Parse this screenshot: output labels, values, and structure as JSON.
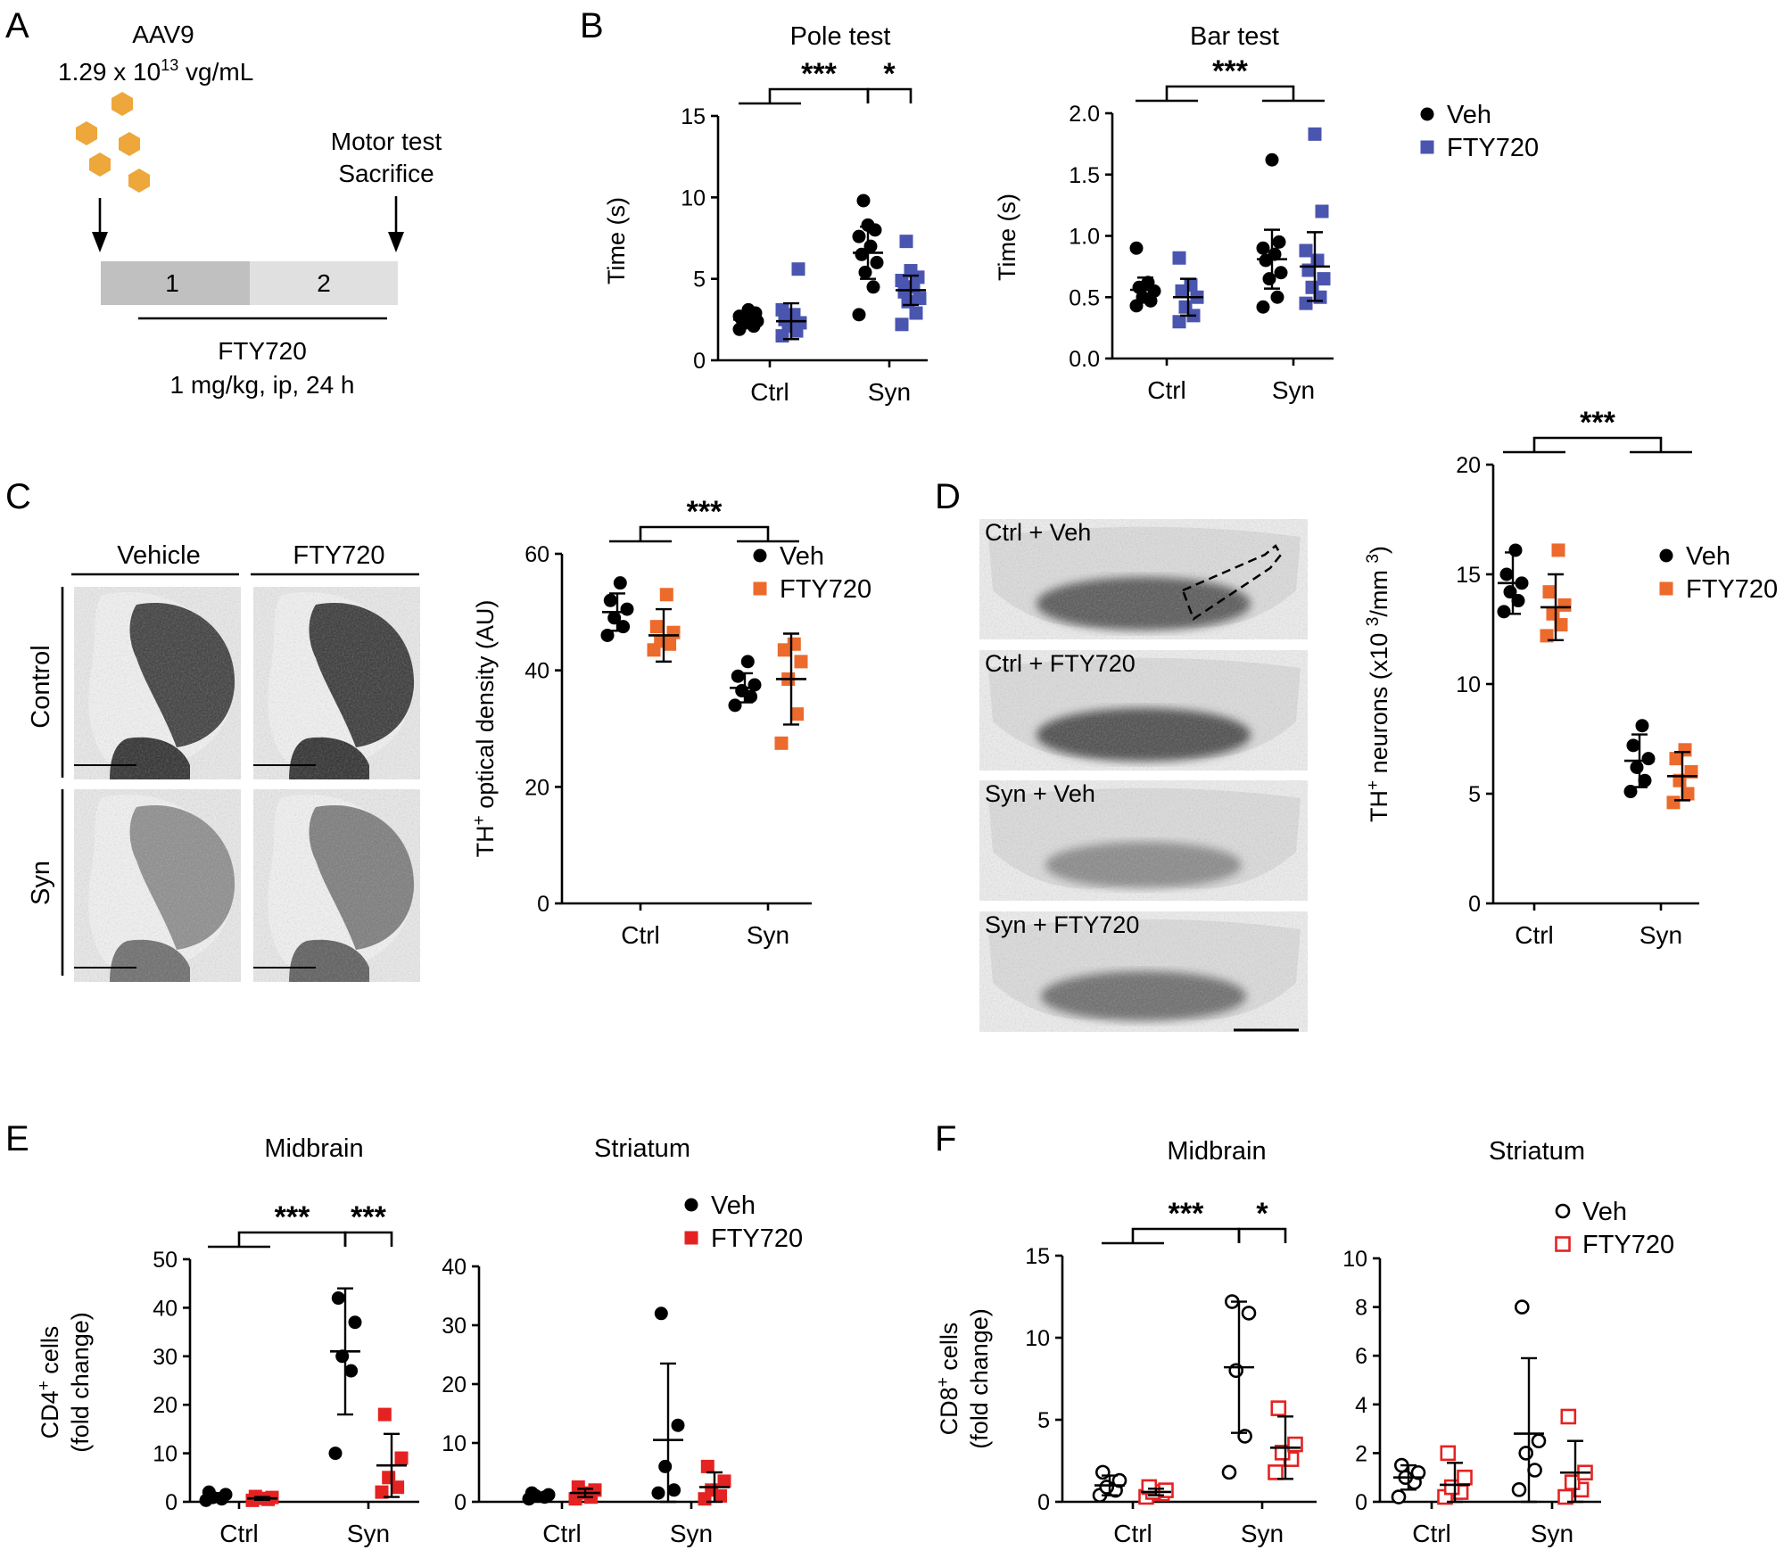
{
  "colors": {
    "veh": "#000000",
    "fty_blue": "#4a55b0",
    "fty_orange": "#ec6a2c",
    "fty_red": "#e52222",
    "aav_particle": "#eda73a",
    "bar1": "#c0c0c0",
    "bar2": "#e0e0e0"
  },
  "panelA": {
    "label": "A",
    "virus": "AAV9",
    "titer_prefix": "1.29 x 10",
    "titer_exp": "13",
    "titer_suffix": " vg/mL",
    "endpoint_line1": "Motor test",
    "endpoint_line2": "Sacrifice",
    "week1": "1",
    "week2": "2",
    "treatment": "FTY720",
    "dose": "1 mg/kg, ip, 24 h"
  },
  "panelB": {
    "label": "B"
  },
  "panelC": {
    "label": "C",
    "col1": "Vehicle",
    "col2": "FTY720",
    "row1": "Control",
    "row2": "Syn"
  },
  "panelD": {
    "label": "D",
    "images": [
      "Ctrl + Veh",
      "Ctrl + FTY720",
      "Syn + Veh",
      "Syn + FTY720"
    ]
  },
  "panelE": {
    "label": "E"
  },
  "panelF": {
    "label": "F"
  },
  "chart_data": [
    {
      "id": "B_pole",
      "panel": "B",
      "type": "scatter",
      "title": "Pole test",
      "ylabel": "Time (s)",
      "ylim": [
        0,
        15
      ],
      "yticks": [
        "0",
        "5",
        "10",
        "15"
      ],
      "categories": [
        "Ctrl",
        "Syn"
      ],
      "legend": {
        "show": false
      },
      "series": [
        {
          "name": "Veh",
          "color": "#000000",
          "marker": "circle",
          "filled": true,
          "groups": [
            {
              "mean": 2.5,
              "sd": 0.5,
              "points": [
                1.9,
                2.1,
                2.3,
                2.4,
                2.5,
                2.6,
                2.7,
                2.9,
                3.1
              ]
            },
            {
              "mean": 6.6,
              "sd": 1.6,
              "points": [
                2.8,
                4.5,
                5.4,
                6.0,
                6.5,
                7.0,
                7.6,
                8.0,
                8.3,
                9.8
              ]
            }
          ]
        },
        {
          "name": "FTY720",
          "color": "#4a55b0",
          "marker": "square",
          "filled": true,
          "groups": [
            {
              "mean": 2.4,
              "sd": 1.1,
              "points": [
                1.5,
                1.8,
                2.1,
                2.3,
                2.5,
                2.8,
                3.1,
                5.6
              ]
            },
            {
              "mean": 4.3,
              "sd": 0.9,
              "points": [
                2.2,
                2.9,
                3.6,
                3.8,
                4.2,
                4.5,
                4.9,
                5.1,
                5.5,
                7.3
              ]
            }
          ]
        }
      ],
      "brackets": [
        {
          "type": "group",
          "from": "Ctrl",
          "to": "Syn-Veh",
          "label": "***"
        },
        {
          "type": "pair",
          "from": "Syn-Veh",
          "to": "Syn-FTY720",
          "label": "*"
        }
      ]
    },
    {
      "id": "B_bar",
      "panel": "B",
      "type": "scatter",
      "title": "Bar test",
      "ylabel": "Time (s)",
      "ylim": [
        0,
        2.0
      ],
      "yticks": [
        "0.0",
        "0.5",
        "1.0",
        "1.5",
        "2.0"
      ],
      "categories": [
        "Ctrl",
        "Syn"
      ],
      "legend": {
        "show": true,
        "position": "right",
        "entries": [
          "Veh",
          "FTY720"
        ]
      },
      "series": [
        {
          "name": "Veh",
          "color": "#000000",
          "marker": "circle",
          "filled": true,
          "groups": [
            {
              "mean": 0.56,
              "sd": 0.1,
              "points": [
                0.43,
                0.47,
                0.5,
                0.55,
                0.58,
                0.62,
                0.9
              ]
            },
            {
              "mean": 0.81,
              "sd": 0.24,
              "points": [
                0.42,
                0.5,
                0.65,
                0.7,
                0.8,
                0.85,
                0.9,
                0.95,
                1.62
              ]
            }
          ]
        },
        {
          "name": "FTY720",
          "color": "#4a55b0",
          "marker": "square",
          "filled": true,
          "groups": [
            {
              "mean": 0.5,
              "sd": 0.15,
              "points": [
                0.3,
                0.35,
                0.42,
                0.5,
                0.55,
                0.6,
                0.82
              ]
            },
            {
              "mean": 0.75,
              "sd": 0.28,
              "points": [
                0.45,
                0.5,
                0.58,
                0.65,
                0.72,
                0.8,
                0.88,
                1.2,
                1.83
              ]
            }
          ]
        }
      ],
      "brackets": [
        {
          "type": "group",
          "from": "Ctrl",
          "to": "Syn",
          "label": "***"
        }
      ]
    },
    {
      "id": "C_od",
      "panel": "C",
      "type": "scatter",
      "title": "",
      "ylabel": "TH+ optical density (AU)",
      "ylim": [
        0,
        60
      ],
      "yticks": [
        "0",
        "20",
        "40",
        "60"
      ],
      "categories": [
        "Ctrl",
        "Syn"
      ],
      "legend": {
        "show": true,
        "position": "top",
        "entries": [
          "Veh",
          "FTY720"
        ]
      },
      "series": [
        {
          "name": "Veh",
          "color": "#000000",
          "marker": "circle",
          "filled": true,
          "groups": [
            {
              "mean": 50,
              "sd": 3.2,
              "points": [
                46,
                47.5,
                49,
                50.5,
                52,
                55
              ]
            },
            {
              "mean": 37,
              "sd": 2.5,
              "points": [
                34,
                35.5,
                36.5,
                37.5,
                39,
                41.5
              ]
            }
          ]
        },
        {
          "name": "FTY720",
          "color": "#ec6a2c",
          "marker": "square",
          "filled": true,
          "groups": [
            {
              "mean": 46,
              "sd": 4.5,
              "points": [
                43.5,
                44.5,
                45,
                46.5,
                47.5,
                53
              ]
            },
            {
              "mean": 38.5,
              "sd": 7.8,
              "points": [
                27.5,
                32.5,
                38.5,
                41.5,
                43.5,
                44.5
              ]
            }
          ]
        }
      ],
      "brackets": [
        {
          "type": "group",
          "from": "Ctrl",
          "to": "Syn",
          "label": "***"
        }
      ]
    },
    {
      "id": "D_neurons",
      "panel": "D",
      "type": "scatter",
      "title": "",
      "ylabel": "TH+ neurons (x10 3/mm 3)",
      "ylim": [
        0,
        20
      ],
      "yticks": [
        "0",
        "5",
        "10",
        "15",
        "20"
      ],
      "categories": [
        "Ctrl",
        "Syn"
      ],
      "legend": {
        "show": true,
        "position": "top-right",
        "entries": [
          "Veh",
          "FTY720"
        ]
      },
      "series": [
        {
          "name": "Veh",
          "color": "#000000",
          "marker": "circle",
          "filled": true,
          "groups": [
            {
              "mean": 14.6,
              "sd": 1.4,
              "points": [
                13.3,
                13.8,
                14.2,
                14.6,
                15.0,
                16.1
              ]
            },
            {
              "mean": 6.5,
              "sd": 1.2,
              "points": [
                5.1,
                5.6,
                6.2,
                6.6,
                7.2,
                8.1
              ]
            }
          ]
        },
        {
          "name": "FTY720",
          "color": "#ec6a2c",
          "marker": "square",
          "filled": true,
          "groups": [
            {
              "mean": 13.5,
              "sd": 1.5,
              "points": [
                12.2,
                12.7,
                13.2,
                13.6,
                14.2,
                16.1
              ]
            },
            {
              "mean": 5.8,
              "sd": 1.1,
              "points": [
                4.6,
                5.0,
                5.6,
                6.0,
                6.6,
                7.0
              ]
            }
          ]
        }
      ],
      "brackets": [
        {
          "type": "group",
          "from": "Ctrl",
          "to": "Syn",
          "label": "***"
        }
      ]
    },
    {
      "id": "E_midbrain",
      "panel": "E",
      "type": "scatter",
      "title": "Midbrain",
      "ylabel": "CD4+ cells (fold change)",
      "ylim": [
        0,
        50
      ],
      "yticks": [
        "0",
        "10",
        "20",
        "30",
        "40",
        "50"
      ],
      "categories": [
        "Ctrl",
        "Syn"
      ],
      "legend": {
        "show": false
      },
      "series": [
        {
          "name": "Veh",
          "color": "#000000",
          "marker": "circle",
          "filled": true,
          "groups": [
            {
              "mean": 1.0,
              "sd": 0.8,
              "points": [
                0.3,
                0.6,
                0.9,
                1.5,
                2.0
              ]
            },
            {
              "mean": 31,
              "sd": 13,
              "points": [
                10,
                27,
                30,
                37,
                42
              ]
            }
          ]
        },
        {
          "name": "FTY720",
          "color": "#e52222",
          "marker": "square",
          "filled": true,
          "groups": [
            {
              "mean": 0.7,
              "sd": 0.3,
              "points": [
                0.3,
                0.5,
                0.7,
                0.9,
                1.1
              ]
            },
            {
              "mean": 7.5,
              "sd": 6.5,
              "points": [
                2.0,
                3.0,
                5.0,
                9.0,
                18
              ]
            }
          ]
        }
      ],
      "brackets": [
        {
          "type": "group",
          "from": "Ctrl",
          "to": "Syn-Veh",
          "label": "***"
        },
        {
          "type": "pair",
          "from": "Syn-Veh",
          "to": "Syn-FTY720",
          "label": "***"
        }
      ]
    },
    {
      "id": "E_striatum",
      "panel": "E",
      "type": "scatter",
      "title": "Striatum",
      "ylabel": "",
      "ylim": [
        0,
        40
      ],
      "yticks": [
        "0",
        "10",
        "20",
        "30",
        "40"
      ],
      "categories": [
        "Ctrl",
        "Syn"
      ],
      "legend": {
        "show": true,
        "position": "top-right",
        "entries": [
          "Veh",
          "FTY720"
        ]
      },
      "series": [
        {
          "name": "Veh",
          "color": "#000000",
          "marker": "circle",
          "filled": true,
          "groups": [
            {
              "mean": 1.0,
              "sd": 0.4,
              "points": [
                0.5,
                0.8,
                1.0,
                1.2,
                1.5
              ]
            },
            {
              "mean": 10.5,
              "sd": 13,
              "points": [
                1.5,
                2.0,
                6.0,
                13,
                32
              ]
            }
          ]
        },
        {
          "name": "FTY720",
          "color": "#e52222",
          "marker": "square",
          "filled": true,
          "groups": [
            {
              "mean": 1.5,
              "sd": 0.7,
              "points": [
                0.5,
                0.8,
                1.5,
                2.0,
                2.5
              ]
            },
            {
              "mean": 2.5,
              "sd": 2.5,
              "points": [
                0.5,
                1.0,
                2.0,
                3.5,
                6.0
              ]
            }
          ]
        }
      ],
      "brackets": []
    },
    {
      "id": "F_midbrain",
      "panel": "F",
      "type": "scatter",
      "title": "Midbrain",
      "ylabel": "CD8+ cells (fold change)",
      "ylim": [
        0,
        15
      ],
      "yticks": [
        "0",
        "5",
        "10",
        "15"
      ],
      "categories": [
        "Ctrl",
        "Syn"
      ],
      "legend": {
        "show": false
      },
      "series": [
        {
          "name": "Veh",
          "color": "#000000",
          "marker": "circle",
          "filled": false,
          "groups": [
            {
              "mean": 1.0,
              "sd": 0.6,
              "points": [
                0.4,
                0.7,
                0.9,
                1.3,
                1.8
              ]
            },
            {
              "mean": 8.2,
              "sd": 4.0,
              "points": [
                1.8,
                4.0,
                8.0,
                11.5,
                12.2
              ]
            }
          ]
        },
        {
          "name": "FTY720",
          "color": "#e52222",
          "marker": "square",
          "filled": false,
          "groups": [
            {
              "mean": 0.6,
              "sd": 0.2,
              "points": [
                0.3,
                0.5,
                0.6,
                0.7,
                0.9
              ]
            },
            {
              "mean": 3.3,
              "sd": 1.9,
              "points": [
                1.8,
                2.6,
                3.0,
                3.5,
                5.7
              ]
            }
          ]
        }
      ],
      "brackets": [
        {
          "type": "group",
          "from": "Ctrl",
          "to": "Syn-Veh",
          "label": "***"
        },
        {
          "type": "pair",
          "from": "Syn-Veh",
          "to": "Syn-FTY720",
          "label": "*"
        }
      ]
    },
    {
      "id": "F_striatum",
      "panel": "F",
      "type": "scatter",
      "title": "Striatum",
      "ylabel": "",
      "ylim": [
        0,
        10
      ],
      "yticks": [
        "0",
        "2",
        "4",
        "6",
        "8",
        "10"
      ],
      "categories": [
        "Ctrl",
        "Syn"
      ],
      "legend": {
        "show": true,
        "position": "top-right",
        "entries": [
          "Veh",
          "FTY720"
        ]
      },
      "series": [
        {
          "name": "Veh",
          "color": "#000000",
          "marker": "circle",
          "filled": false,
          "groups": [
            {
              "mean": 1.0,
              "sd": 0.5,
              "points": [
                0.2,
                0.8,
                1.0,
                1.2,
                1.5
              ]
            },
            {
              "mean": 2.8,
              "sd": 3.1,
              "points": [
                0.5,
                1.3,
                2.0,
                2.5,
                8.0
              ]
            }
          ]
        },
        {
          "name": "FTY720",
          "color": "#e52222",
          "marker": "square",
          "filled": false,
          "groups": [
            {
              "mean": 0.7,
              "sd": 0.9,
              "points": [
                0.2,
                0.4,
                0.6,
                1.0,
                2.0
              ]
            },
            {
              "mean": 1.2,
              "sd": 1.3,
              "points": [
                0.2,
                0.5,
                0.8,
                1.2,
                3.5
              ]
            }
          ]
        }
      ],
      "brackets": []
    }
  ]
}
